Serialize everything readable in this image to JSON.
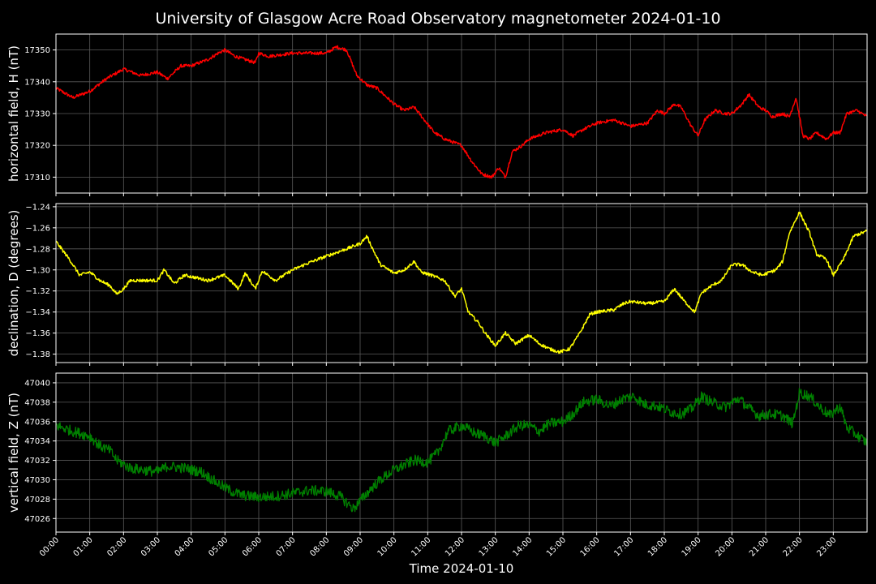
{
  "chart_data": {
    "type": "line",
    "title": "University of Glasgow Acre Road Observatory magnetometer 2024-01-10",
    "xlabel": "Time 2024-01-10",
    "x_ticks": [
      "00:00",
      "01:00",
      "02:00",
      "03:00",
      "04:00",
      "05:00",
      "06:00",
      "07:00",
      "08:00",
      "09:00",
      "10:00",
      "11:00",
      "12:00",
      "13:00",
      "14:00",
      "15:00",
      "16:00",
      "17:00",
      "18:00",
      "19:00",
      "20:00",
      "21:00",
      "22:00",
      "23:00"
    ],
    "x_range_hours": [
      0,
      24
    ],
    "grid": true,
    "background": "#000000",
    "panels": [
      {
        "ylabel": "horizontal field, H (nT)",
        "color": "#ff0000",
        "ylim": [
          17305,
          17355
        ],
        "yticks": [
          17310,
          17320,
          17330,
          17340,
          17350
        ],
        "ytick_labels": [
          "17310",
          "17320",
          "17330",
          "17340",
          "17350"
        ],
        "noise": 0.5,
        "points": [
          [
            0,
            17338
          ],
          [
            0.5,
            17335
          ],
          [
            1,
            17337
          ],
          [
            1.5,
            17341
          ],
          [
            2,
            17344
          ],
          [
            2.5,
            17342
          ],
          [
            3,
            17343
          ],
          [
            3.3,
            17341
          ],
          [
            3.7,
            17345
          ],
          [
            4,
            17345
          ],
          [
            4.5,
            17347
          ],
          [
            4.8,
            17349
          ],
          [
            5,
            17350
          ],
          [
            5.3,
            17348
          ],
          [
            5.6,
            17347
          ],
          [
            5.9,
            17346
          ],
          [
            6,
            17349
          ],
          [
            6.3,
            17348
          ],
          [
            7,
            17349
          ],
          [
            7.5,
            17349
          ],
          [
            8,
            17349
          ],
          [
            8.3,
            17351
          ],
          [
            8.6,
            17350
          ],
          [
            8.9,
            17342
          ],
          [
            9.2,
            17339
          ],
          [
            9.5,
            17338
          ],
          [
            9.8,
            17335
          ],
          [
            10,
            17333
          ],
          [
            10.3,
            17331
          ],
          [
            10.6,
            17332
          ],
          [
            10.9,
            17328
          ],
          [
            11.2,
            17324
          ],
          [
            11.5,
            17322
          ],
          [
            12,
            17320
          ],
          [
            12.3,
            17315
          ],
          [
            12.6,
            17311
          ],
          [
            12.9,
            17310
          ],
          [
            13.1,
            17313
          ],
          [
            13.3,
            17310
          ],
          [
            13.5,
            17318
          ],
          [
            13.8,
            17320
          ],
          [
            14,
            17322
          ],
          [
            14.5,
            17324
          ],
          [
            15,
            17325
          ],
          [
            15.3,
            17323
          ],
          [
            15.6,
            17325
          ],
          [
            16,
            17327
          ],
          [
            16.5,
            17328
          ],
          [
            17,
            17326
          ],
          [
            17.5,
            17327
          ],
          [
            17.8,
            17331
          ],
          [
            18,
            17330
          ],
          [
            18.3,
            17333
          ],
          [
            18.5,
            17332
          ],
          [
            18.8,
            17326
          ],
          [
            19,
            17323
          ],
          [
            19.2,
            17328
          ],
          [
            19.5,
            17331
          ],
          [
            19.8,
            17330
          ],
          [
            20,
            17330
          ],
          [
            20.3,
            17333
          ],
          [
            20.5,
            17336
          ],
          [
            20.8,
            17332
          ],
          [
            21,
            17331
          ],
          [
            21.2,
            17329
          ],
          [
            21.5,
            17330
          ],
          [
            21.7,
            17329
          ],
          [
            21.9,
            17335
          ],
          [
            22.1,
            17323
          ],
          [
            22.3,
            17322
          ],
          [
            22.5,
            17324
          ],
          [
            22.8,
            17322
          ],
          [
            23,
            17324
          ],
          [
            23.2,
            17324
          ],
          [
            23.4,
            17330
          ],
          [
            23.7,
            17331
          ],
          [
            24,
            17329
          ]
        ]
      },
      {
        "ylabel": "declination, D (degrees)",
        "color": "#ffff00",
        "ylim": [
          -1.388,
          -1.237
        ],
        "yticks": [
          -1.38,
          -1.36,
          -1.34,
          -1.32,
          -1.3,
          -1.28,
          -1.26,
          -1.24
        ],
        "ytick_labels": [
          "−1.38",
          "−1.36",
          "−1.34",
          "−1.32",
          "−1.30",
          "−1.28",
          "−1.26",
          "−1.24"
        ],
        "noise": 0.0015,
        "points": [
          [
            0,
            -1.273
          ],
          [
            0.4,
            -1.29
          ],
          [
            0.7,
            -1.305
          ],
          [
            1,
            -1.302
          ],
          [
            1.3,
            -1.31
          ],
          [
            1.6,
            -1.315
          ],
          [
            1.8,
            -1.323
          ],
          [
            2,
            -1.318
          ],
          [
            2.2,
            -1.31
          ],
          [
            3,
            -1.31
          ],
          [
            3.2,
            -1.3
          ],
          [
            3.5,
            -1.313
          ],
          [
            3.8,
            -1.305
          ],
          [
            4.5,
            -1.31
          ],
          [
            5,
            -1.305
          ],
          [
            5.4,
            -1.318
          ],
          [
            5.6,
            -1.303
          ],
          [
            5.9,
            -1.318
          ],
          [
            6.1,
            -1.301
          ],
          [
            6.5,
            -1.31
          ],
          [
            7,
            -1.3
          ],
          [
            7.5,
            -1.293
          ],
          [
            8,
            -1.287
          ],
          [
            8.6,
            -1.28
          ],
          [
            9,
            -1.275
          ],
          [
            9.2,
            -1.268
          ],
          [
            9.4,
            -1.282
          ],
          [
            9.6,
            -1.295
          ],
          [
            10,
            -1.303
          ],
          [
            10.3,
            -1.3
          ],
          [
            10.6,
            -1.292
          ],
          [
            10.8,
            -1.302
          ],
          [
            11.1,
            -1.305
          ],
          [
            11.5,
            -1.31
          ],
          [
            11.8,
            -1.325
          ],
          [
            12,
            -1.318
          ],
          [
            12.2,
            -1.34
          ],
          [
            12.5,
            -1.35
          ],
          [
            12.7,
            -1.36
          ],
          [
            13,
            -1.372
          ],
          [
            13.3,
            -1.36
          ],
          [
            13.6,
            -1.37
          ],
          [
            14,
            -1.362
          ],
          [
            14.3,
            -1.37
          ],
          [
            14.6,
            -1.375
          ],
          [
            14.9,
            -1.378
          ],
          [
            15.2,
            -1.375
          ],
          [
            15.5,
            -1.36
          ],
          [
            15.8,
            -1.342
          ],
          [
            16,
            -1.34
          ],
          [
            16.5,
            -1.338
          ],
          [
            16.8,
            -1.332
          ],
          [
            17,
            -1.33
          ],
          [
            17.5,
            -1.332
          ],
          [
            18,
            -1.33
          ],
          [
            18.3,
            -1.318
          ],
          [
            18.6,
            -1.33
          ],
          [
            18.9,
            -1.34
          ],
          [
            19.1,
            -1.322
          ],
          [
            19.4,
            -1.315
          ],
          [
            19.7,
            -1.31
          ],
          [
            20,
            -1.295
          ],
          [
            20.3,
            -1.295
          ],
          [
            20.6,
            -1.302
          ],
          [
            20.9,
            -1.305
          ],
          [
            21.3,
            -1.3
          ],
          [
            21.5,
            -1.292
          ],
          [
            21.7,
            -1.265
          ],
          [
            22,
            -1.245
          ],
          [
            22.3,
            -1.265
          ],
          [
            22.5,
            -1.285
          ],
          [
            22.8,
            -1.29
          ],
          [
            23,
            -1.305
          ],
          [
            23.3,
            -1.29
          ],
          [
            23.6,
            -1.268
          ],
          [
            24,
            -1.263
          ]
        ]
      },
      {
        "ylabel": "vertical field, Z (nT)",
        "color": "#008000",
        "ylim": [
          47024.6,
          47041.0
        ],
        "yticks": [
          47026,
          47028,
          47030,
          47032,
          47034,
          47036,
          47038,
          47040
        ],
        "ytick_labels": [
          "47026",
          "47028",
          "47030",
          "47032",
          "47034",
          "47036",
          "47038",
          "47040"
        ],
        "noise": 0.55,
        "points": [
          [
            0,
            47035.6
          ],
          [
            0.5,
            47035
          ],
          [
            1,
            47034.5
          ],
          [
            1.3,
            47033.5
          ],
          [
            1.6,
            47033
          ],
          [
            1.8,
            47032
          ],
          [
            2.2,
            47031.2
          ],
          [
            2.6,
            47031
          ],
          [
            3,
            47030.8
          ],
          [
            3.3,
            47031.4
          ],
          [
            3.8,
            47031.2
          ],
          [
            4.3,
            47030.8
          ],
          [
            4.8,
            47029.6
          ],
          [
            5.2,
            47028.8
          ],
          [
            5.5,
            47028.4
          ],
          [
            6,
            47028.2
          ],
          [
            6.5,
            47028.3
          ],
          [
            7,
            47028.6
          ],
          [
            7.5,
            47028.9
          ],
          [
            8,
            47028.8
          ],
          [
            8.4,
            47028.3
          ],
          [
            8.8,
            47027
          ],
          [
            9,
            47027.8
          ],
          [
            9.3,
            47029
          ],
          [
            9.6,
            47030
          ],
          [
            10,
            47031
          ],
          [
            10.3,
            47031.5
          ],
          [
            10.6,
            47032
          ],
          [
            11,
            47031.8
          ],
          [
            11.3,
            47032.8
          ],
          [
            11.6,
            47035
          ],
          [
            12,
            47035.6
          ],
          [
            12.4,
            47034.8
          ],
          [
            12.7,
            47034.5
          ],
          [
            13,
            47033.8
          ],
          [
            13.3,
            47034.5
          ],
          [
            13.7,
            47035.6
          ],
          [
            14,
            47035.6
          ],
          [
            14.3,
            47035
          ],
          [
            14.6,
            47035.8
          ],
          [
            15,
            47036
          ],
          [
            15.3,
            47036.8
          ],
          [
            15.6,
            47038
          ],
          [
            16,
            47038.3
          ],
          [
            16.4,
            47037.6
          ],
          [
            16.8,
            47038.4
          ],
          [
            17.1,
            47038.6
          ],
          [
            17.4,
            47037.8
          ],
          [
            17.8,
            47037.6
          ],
          [
            18.2,
            47037
          ],
          [
            18.5,
            47036.8
          ],
          [
            18.8,
            47037.3
          ],
          [
            19.1,
            47038.6
          ],
          [
            19.4,
            47038
          ],
          [
            19.8,
            47037.5
          ],
          [
            20.2,
            47038.4
          ],
          [
            20.5,
            47037.4
          ],
          [
            20.8,
            47036.6
          ],
          [
            21.2,
            47036.8
          ],
          [
            21.5,
            47036.6
          ],
          [
            21.8,
            47035.8
          ],
          [
            22,
            47039
          ],
          [
            22.3,
            47038.6
          ],
          [
            22.6,
            47037.5
          ],
          [
            22.9,
            47036.6
          ],
          [
            23.2,
            47037.6
          ],
          [
            23.4,
            47035.4
          ],
          [
            23.7,
            47034.6
          ],
          [
            24,
            47033.8
          ]
        ]
      }
    ]
  }
}
